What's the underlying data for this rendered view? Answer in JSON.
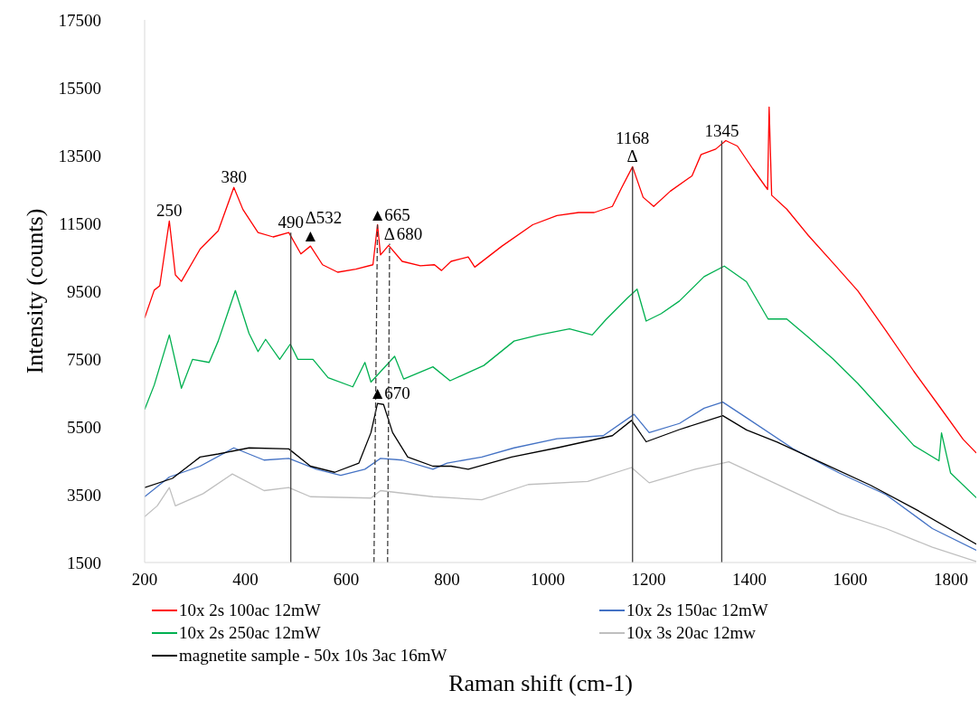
{
  "chart_data": {
    "type": "line",
    "xlabel": "Raman shift (cm-1)",
    "ylabel": "Intensity (counts)",
    "xlim": [
      200,
      1850
    ],
    "xticks": [
      200,
      400,
      600,
      800,
      1000,
      1200,
      1400,
      1600,
      1800
    ],
    "ylim": [
      1500,
      17500
    ],
    "yticks": [
      1500,
      3500,
      5500,
      7500,
      9500,
      11500,
      13500,
      15500,
      17500
    ],
    "legend": "bottom",
    "series": [
      {
        "name": "10x 2s 100ac 12mW",
        "color": "#ff0000",
        "x": [
          200,
          219,
          230,
          249,
          261,
          273,
          310,
          346,
          377,
          395,
          425,
          455,
          486,
          510,
          529,
          553,
          583,
          619,
          653,
          662,
          668,
          684,
          711,
          747,
          775,
          789,
          808,
          842,
          855,
          909,
          970,
          1018,
          1061,
          1092,
          1128,
          1146,
          1168,
          1189,
          1210,
          1243,
          1286,
          1304,
          1333,
          1353,
          1376,
          1407,
          1431,
          1436,
          1439,
          1444,
          1474,
          1517,
          1566,
          1615,
          1671,
          1726,
          1775,
          1824,
          1850
        ],
        "values": [
          8710,
          9530,
          9660,
          11570,
          9980,
          9790,
          10740,
          11280,
          12560,
          11910,
          11230,
          11100,
          11230,
          10600,
          10830,
          10280,
          10060,
          10150,
          10280,
          11460,
          10570,
          10850,
          10380,
          10250,
          10280,
          10110,
          10380,
          10510,
          10210,
          10830,
          11460,
          11730,
          11820,
          11820,
          12000,
          12540,
          13170,
          12270,
          12000,
          12450,
          12900,
          13530,
          13690,
          13940,
          13780,
          13100,
          12600,
          12500,
          14930,
          12330,
          11920,
          11140,
          10330,
          9510,
          8330,
          7140,
          6140,
          5130,
          4730
        ]
      },
      {
        "name": "10x 2s 150ac 12mW",
        "color": "#4472c4",
        "x": [
          200,
          249,
          310,
          377,
          437,
          486,
          541,
          589,
          637,
          668,
          711,
          772,
          800,
          869,
          933,
          1018,
          1110,
          1171,
          1201,
          1261,
          1310,
          1347,
          1394,
          1486,
          1578,
          1671,
          1763,
          1850
        ],
        "values": [
          3440,
          4020,
          4340,
          4880,
          4520,
          4570,
          4250,
          4070,
          4250,
          4570,
          4520,
          4250,
          4430,
          4610,
          4880,
          5150,
          5240,
          5870,
          5330,
          5600,
          6050,
          6230,
          5770,
          4860,
          4140,
          3500,
          2500,
          1860
        ]
      },
      {
        "name": "10x 2s 250ac 12mW",
        "color": "#00b050",
        "x": [
          200,
          219,
          249,
          273,
          295,
          328,
          346,
          380,
          407,
          425,
          440,
          468,
          489,
          504,
          534,
          564,
          613,
          637,
          649,
          696,
          714,
          772,
          806,
          873,
          933,
          982,
          1043,
          1088,
          1115,
          1158,
          1177,
          1195,
          1225,
          1261,
          1310,
          1350,
          1394,
          1437,
          1474,
          1517,
          1566,
          1615,
          1671,
          1726,
          1776,
          1781,
          1799,
          1850
        ],
        "values": [
          6010,
          6730,
          8210,
          6640,
          7490,
          7400,
          8030,
          9520,
          8260,
          7720,
          8080,
          7490,
          7940,
          7490,
          7490,
          6950,
          6680,
          7400,
          6820,
          7580,
          6910,
          7270,
          6860,
          7310,
          8030,
          8210,
          8390,
          8210,
          8660,
          9300,
          9560,
          8620,
          8840,
          9210,
          9930,
          10240,
          9780,
          8680,
          8680,
          8140,
          7500,
          6780,
          5860,
          4950,
          4500,
          5320,
          4140,
          3410
        ]
      },
      {
        "name": "10x 3s 20ac 12mw",
        "color": "#bfbfbf",
        "x": [
          200,
          225,
          249,
          261,
          316,
          374,
          437,
          486,
          529,
          649,
          668,
          772,
          869,
          961,
          1079,
          1166,
          1201,
          1292,
          1359,
          1486,
          1578,
          1671,
          1763,
          1850
        ],
        "values": [
          2850,
          3170,
          3710,
          3170,
          3530,
          4110,
          3620,
          3710,
          3440,
          3400,
          3620,
          3440,
          3350,
          3800,
          3890,
          4300,
          3850,
          4250,
          4470,
          3590,
          2950,
          2500,
          1950,
          1530
        ]
      },
      {
        "name": "magnetite sample - 50x 10s 3ac 16mW",
        "color": "#000000",
        "x": [
          200,
          255,
          310,
          346,
          407,
          486,
          529,
          577,
          625,
          649,
          662,
          674,
          692,
          722,
          772,
          808,
          842,
          928,
          1018,
          1128,
          1166,
          1195,
          1261,
          1347,
          1394,
          1455,
          1548,
          1640,
          1732,
          1850
        ],
        "values": [
          3710,
          3980,
          4610,
          4700,
          4880,
          4850,
          4340,
          4160,
          4430,
          5330,
          6190,
          6160,
          5330,
          4610,
          4340,
          4340,
          4250,
          4610,
          4880,
          5240,
          5690,
          5060,
          5420,
          5830,
          5410,
          5050,
          4410,
          3780,
          3050,
          2040
        ]
      },
      {
        "color": "#404040",
        "x": [
          490,
          490
        ],
        "values": [
          1500,
          11230
        ]
      },
      {
        "color": "#404040",
        "x": [
          1168,
          1168
        ],
        "values": [
          1500,
          13170
        ]
      },
      {
        "color": "#404040",
        "x": [
          1345,
          1345
        ],
        "values": [
          1500,
          13940
        ]
      },
      {
        "color": "#404040",
        "line_style": "dashed",
        "x": [
          655,
          662
        ],
        "values": [
          1500,
          11460
        ]
      },
      {
        "color": "#404040",
        "line_style": "dashed",
        "x": [
          682,
          686
        ],
        "values": [
          1500,
          10900
        ]
      }
    ],
    "annotations": [
      {
        "text": "250",
        "x": 249,
        "y": 11570
      },
      {
        "text": "380",
        "x": 377,
        "y": 12560
      },
      {
        "text": "490",
        "x": 490,
        "y": 11230
      },
      {
        "text": "▲",
        "x": 529,
        "y": 10830
      },
      {
        "text": "Δ532",
        "x": 529,
        "y": 10830
      },
      {
        "text": "▲",
        "x": 662,
        "y": 11460
      },
      {
        "text": "665",
        "x": 662,
        "y": 11460
      },
      {
        "text": "Δ",
        "x": 686,
        "y": 10900
      },
      {
        "text": "680",
        "x": 686,
        "y": 10900
      },
      {
        "text": "▲",
        "x": 662,
        "y": 6190
      },
      {
        "text": "670",
        "x": 662,
        "y": 6190
      },
      {
        "text": "Δ",
        "x": 1168,
        "y": 13170
      },
      {
        "text": "1168",
        "x": 1168,
        "y": 13170
      },
      {
        "text": "1345",
        "x": 1345,
        "y": 13940
      }
    ]
  }
}
